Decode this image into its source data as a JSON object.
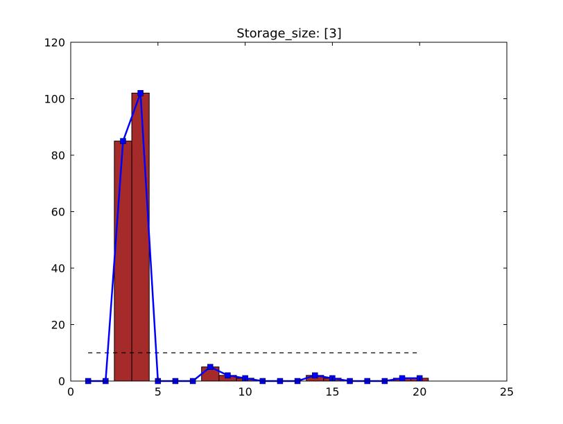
{
  "chart_data": {
    "type": "bar",
    "title": "Storage_size: [3]",
    "xlabel": "",
    "ylabel": "",
    "xlim": [
      0,
      25
    ],
    "ylim": [
      0,
      120
    ],
    "xticks": [
      0,
      5,
      10,
      15,
      20,
      25
    ],
    "yticks": [
      0,
      20,
      40,
      60,
      80,
      100,
      120
    ],
    "grid": false,
    "bars": {
      "color": "#a52a2a",
      "x": [
        3,
        4,
        8,
        9,
        10,
        14,
        15,
        19,
        20
      ],
      "values": [
        85,
        102,
        5,
        2,
        1,
        2,
        1,
        1,
        1
      ]
    },
    "line": {
      "color": "#0000ff",
      "marker": "square",
      "x": [
        1,
        2,
        3,
        4,
        5,
        6,
        7,
        8,
        9,
        10,
        11,
        12,
        13,
        14,
        15,
        16,
        17,
        18,
        19,
        20
      ],
      "y": [
        0,
        0,
        85,
        102,
        0,
        0,
        0,
        5,
        2,
        1,
        0,
        0,
        0,
        2,
        1,
        0,
        0,
        0,
        1,
        1
      ]
    },
    "reference_line": {
      "style": "dashed",
      "color": "#000000",
      "x_range": [
        1,
        20
      ],
      "y": 10
    }
  }
}
